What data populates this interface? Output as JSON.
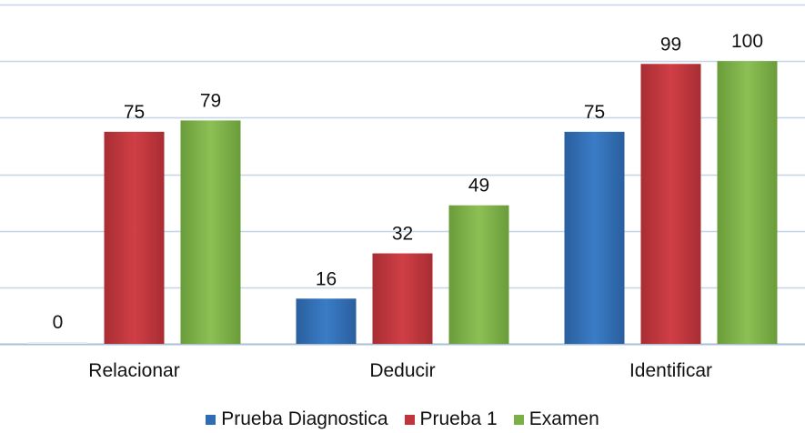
{
  "chart_data": {
    "type": "bar",
    "title": "",
    "xlabel": "",
    "ylabel": "",
    "categories": [
      "Relacionar",
      "Deducir",
      "Identificar"
    ],
    "series": [
      {
        "name": "Prueba Diagnostica",
        "values": [
          0,
          16,
          75
        ],
        "color": "#2e6cb5"
      },
      {
        "name": "Prueba 1",
        "values": [
          75,
          32,
          99
        ],
        "color": "#c2343b"
      },
      {
        "name": "Examen",
        "values": [
          79,
          49,
          100
        ],
        "color": "#7bb046"
      }
    ],
    "ylim": [
      0,
      120
    ],
    "grid": true,
    "legend": "bottom"
  }
}
